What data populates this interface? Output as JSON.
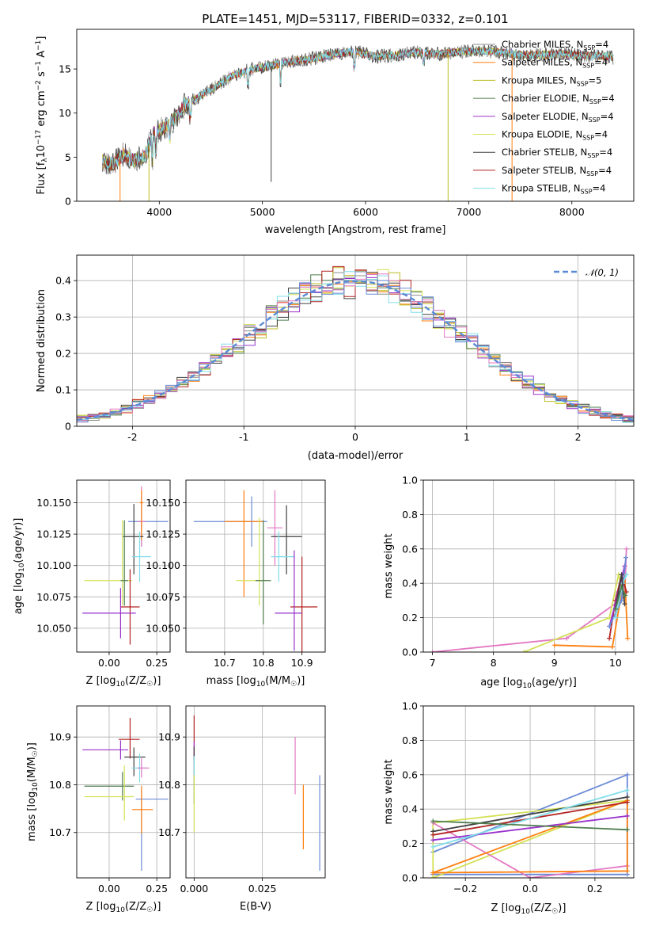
{
  "figure": {
    "title": "PLATE=1451, MJD=53117, FIBERID=0332, z=0.101"
  },
  "chart_data": [
    {
      "id": "spectrum",
      "type": "line",
      "xlabel": "wavelength [Angstrom, rest frame]",
      "ylabel_main": "Flux [f",
      "ylabel_sub": "λ",
      "ylabel_rest": "10",
      "ylabel_exp1": "−17",
      "ylabel_mid": " erg cm",
      "ylabel_exp2": "−2",
      "ylabel_s": " s",
      "ylabel_exp3": "−1",
      "ylabel_A": " A",
      "ylabel_exp4": "−1",
      "ylabel_end": "]",
      "xlim": [
        3200,
        8600
      ],
      "ylim": [
        0,
        19.5
      ],
      "xticks": [
        4000,
        5000,
        6000,
        7000,
        8000
      ],
      "yticks": [
        0,
        5,
        10,
        15
      ],
      "x": [
        3450,
        3550,
        3650,
        3750,
        3850,
        3950,
        4050,
        4150,
        4250,
        4350,
        4500,
        4700,
        4900,
        5100,
        5300,
        5500,
        5700,
        5900,
        6100,
        6300,
        6500,
        6700,
        6900,
        7100,
        7300,
        7500,
        7700,
        7900,
        8100,
        8300,
        8400
      ],
      "y": [
        4.5,
        4.2,
        5.3,
        4.6,
        5.0,
        7.8,
        8.3,
        9.3,
        11.0,
        11.6,
        12.6,
        14.2,
        15.0,
        15.4,
        15.9,
        16.2,
        16.7,
        17.0,
        16.4,
        16.6,
        16.9,
        16.7,
        16.9,
        17.1,
        16.9,
        16.6,
        16.6,
        16.7,
        16.5,
        16.5,
        16.3
      ],
      "legend": [
        {
          "pre": "Chabrier MILES, N",
          "sub": "SSP",
          "post": "=4",
          "color": "#8c8c8c"
        },
        {
          "pre": "Salpeter MILES, N",
          "sub": "SSP",
          "post": "=4",
          "color": "#ff7f0e"
        },
        {
          "pre": "Kroupa MILES, N",
          "sub": "SSP",
          "post": "=5",
          "color": "#bcbd22"
        },
        {
          "pre": "Chabrier ELODIE, N",
          "sub": "SSP",
          "post": "=4",
          "color": "#4e7d4e"
        },
        {
          "pre": "Salpeter ELODIE, N",
          "sub": "SSP",
          "post": "=4",
          "color": "#9932cc"
        },
        {
          "pre": "Kroupa ELODIE, N",
          "sub": "SSP",
          "post": "=4",
          "color": "#d4e157"
        },
        {
          "pre": "Chabrier STELIB, N",
          "sub": "SSP",
          "post": "=4",
          "color": "#404040"
        },
        {
          "pre": "Salpeter STELIB, N",
          "sub": "SSP",
          "post": "=4",
          "color": "#b22222"
        },
        {
          "pre": "Kroupa STELIB, N",
          "sub": "SSP",
          "post": "=4",
          "color": "#80deea"
        }
      ]
    },
    {
      "id": "residuals",
      "type": "line",
      "xlabel": "(data-model)/error",
      "ylabel": "Normed distribution",
      "xlim": [
        -2.5,
        2.5
      ],
      "ylim": [
        0,
        0.47
      ],
      "xticks": [
        -2,
        -1,
        0,
        1,
        2
      ],
      "yticks": [
        0.0,
        0.1,
        0.2,
        0.3,
        0.4
      ],
      "gaussian_label": "𝒩(0, 1)",
      "gaussian_color": "#5b8bd6",
      "series_colors": [
        "#8c8c8c",
        "#ff7f0e",
        "#bcbd22",
        "#4e7d4e",
        "#9932cc",
        "#d4e157",
        "#404040",
        "#b22222",
        "#80deea",
        "#e377c2",
        "#6a8ad6"
      ]
    },
    {
      "id": "age-vs-Z",
      "type": "scatter",
      "xlabel_pre": "Z [log",
      "xlabel_sub": "10",
      "xlabel_post": "(Z/Z",
      "xlabel_sun": "☉",
      "xlabel_end": ")]",
      "ylabel_pre": "age  [log",
      "ylabel_sub": "10",
      "ylabel_post": "(age/yr)]",
      "xlim": [
        -0.17,
        0.32
      ],
      "ylim": [
        10.031,
        10.168
      ],
      "xticks": [
        0.0,
        0.25
      ],
      "xticklabels": [
        "0.00",
        "0.25"
      ],
      "yticks": [
        10.05,
        10.075,
        10.1,
        10.125,
        10.15
      ],
      "yticklabels": [
        "10.050",
        "10.075",
        "10.100",
        "10.125",
        "10.150"
      ],
      "points": [
        {
          "x": 0.17,
          "y": 10.135,
          "xerr": [
            0.07,
            0.14
          ],
          "yerr": [
            0.02,
            0.02
          ],
          "color": "#6a8ad6"
        },
        {
          "x": 0.17,
          "y": 10.135,
          "xerr": [
            0.02,
            0.02
          ],
          "yerr": [
            0.02,
            0.028
          ],
          "color": "#e377c2"
        },
        {
          "x": 0.17,
          "y": 10.15,
          "xerr": [
            0.01,
            0.01
          ],
          "yerr": [
            0.03,
            0.01
          ],
          "color": "#ff7f0e"
        },
        {
          "x": 0.13,
          "y": 10.123,
          "xerr": [
            0.06,
            0.05
          ],
          "yerr": [
            0.03,
            0.026
          ],
          "color": "#404040"
        },
        {
          "x": 0.16,
          "y": 10.107,
          "xerr": [
            0.04,
            0.06
          ],
          "yerr": [
            0.02,
            0.02
          ],
          "color": "#80deea"
        },
        {
          "x": 0.07,
          "y": 10.088,
          "xerr": [
            0.2,
            0.05
          ],
          "yerr": [
            0.02,
            0.048
          ],
          "color": "#d4e157"
        },
        {
          "x": 0.08,
          "y": 10.088,
          "xerr": [
            0.02,
            0.02
          ],
          "yerr": [
            0.02,
            0.048
          ],
          "color": "#4e7d4e"
        },
        {
          "x": 0.11,
          "y": 10.067,
          "xerr": [
            0.05,
            0.05
          ],
          "yerr": [
            0.03,
            0.03
          ],
          "color": "#b22222"
        },
        {
          "x": 0.06,
          "y": 10.062,
          "xerr": [
            0.2,
            0.08
          ],
          "yerr": [
            0.02,
            0.02
          ],
          "color": "#9932cc"
        }
      ]
    },
    {
      "id": "age-vs-mass",
      "type": "scatter",
      "xlabel_pre": "mass [log",
      "xlabel_sub": "10",
      "xlabel_post": "(M/M",
      "xlabel_sun": "☉",
      "xlabel_end": ")]",
      "xlim": [
        10.6,
        10.96
      ],
      "ylim": [
        10.031,
        10.168
      ],
      "xticks": [
        10.7,
        10.8,
        10.9
      ],
      "xticklabels": [
        "10.7",
        "10.8",
        "10.9"
      ],
      "yticks": [
        10.05,
        10.075,
        10.1,
        10.125,
        10.15
      ],
      "yticklabels": [
        "10.050",
        "10.075",
        "10.100",
        "10.125",
        "10.150"
      ],
      "points": [
        {
          "x": 10.77,
          "y": 10.135,
          "xerr": [
            0.15,
            0.04
          ],
          "yerr": [
            0.02,
            0.02
          ],
          "color": "#6a8ad6"
        },
        {
          "x": 10.75,
          "y": 10.135,
          "xerr": [
            0.05,
            0.05
          ],
          "yerr": [
            0.06,
            0.025
          ],
          "color": "#ff7f0e"
        },
        {
          "x": 10.83,
          "y": 10.13,
          "xerr": [
            0.02,
            0.02
          ],
          "yerr": [
            0.03,
            0.03
          ],
          "color": "#e377c2"
        },
        {
          "x": 10.86,
          "y": 10.123,
          "xerr": [
            0.04,
            0.04
          ],
          "yerr": [
            0.03,
            0.025
          ],
          "color": "#404040"
        },
        {
          "x": 10.84,
          "y": 10.107,
          "xerr": [
            0.02,
            0.04
          ],
          "yerr": [
            0.02,
            0.02
          ],
          "color": "#80deea"
        },
        {
          "x": 10.79,
          "y": 10.088,
          "xerr": [
            0.06,
            0.02
          ],
          "yerr": [
            0.02,
            0.05
          ],
          "color": "#d4e157"
        },
        {
          "x": 10.8,
          "y": 10.088,
          "xerr": [
            0.02,
            0.02
          ],
          "yerr": [
            0.035,
            0.048
          ],
          "color": "#4e7d4e"
        },
        {
          "x": 10.9,
          "y": 10.067,
          "xerr": [
            0.03,
            0.04
          ],
          "yerr": [
            0.04,
            0.04
          ],
          "color": "#b22222"
        },
        {
          "x": 10.88,
          "y": 10.062,
          "xerr": [
            0.05,
            0.02
          ],
          "yerr": [
            0.03,
            0.05
          ],
          "color": "#9932cc"
        }
      ]
    },
    {
      "id": "weight-vs-age",
      "type": "line",
      "xlabel_pre": "age  [log",
      "xlabel_sub": "10",
      "xlabel_post": "(age/yr)]",
      "ylabel": "mass weight",
      "xlim": [
        6.85,
        10.3
      ],
      "ylim": [
        0,
        1.0
      ],
      "xticks": [
        7,
        8,
        9,
        10
      ],
      "xticklabels": [
        "7",
        "8",
        "9",
        "10"
      ],
      "yticks": [
        0.0,
        0.2,
        0.4,
        0.6,
        0.8,
        1.0
      ],
      "yticklabels": [
        "0.0",
        "0.2",
        "0.4",
        "0.6",
        "0.8",
        "1.0"
      ],
      "series": [
        {
          "color": "#e377c2",
          "x": [
            7.0,
            9.2,
            10.15,
            10.18
          ],
          "y": [
            0.0,
            0.08,
            0.32,
            0.6
          ]
        },
        {
          "color": "#d4e157",
          "x": [
            8.5,
            9.9,
            10.05,
            10.15
          ],
          "y": [
            0.0,
            0.2,
            0.45,
            0.32
          ]
        },
        {
          "color": "#ff7f0e",
          "x": [
            9.0,
            9.95,
            10.15,
            10.2
          ],
          "y": [
            0.04,
            0.03,
            0.45,
            0.08
          ]
        },
        {
          "color": "#b22222",
          "x": [
            9.9,
            10.0,
            10.1,
            10.18
          ],
          "y": [
            0.08,
            0.3,
            0.45,
            0.35
          ]
        },
        {
          "color": "#9932cc",
          "x": [
            9.9,
            10.05,
            10.15
          ],
          "y": [
            0.15,
            0.35,
            0.5
          ]
        },
        {
          "color": "#6a8ad6",
          "x": [
            9.9,
            10.1,
            10.17
          ],
          "y": [
            0.15,
            0.3,
            0.55
          ]
        },
        {
          "color": "#80deea",
          "x": [
            10.0,
            10.12,
            10.18
          ],
          "y": [
            0.2,
            0.4,
            0.45
          ]
        },
        {
          "color": "#404040",
          "x": [
            10.0,
            10.1,
            10.15
          ],
          "y": [
            0.25,
            0.45,
            0.28
          ]
        },
        {
          "color": "#4e7d4e",
          "x": [
            10.0,
            10.1,
            10.16
          ],
          "y": [
            0.25,
            0.38,
            0.33
          ]
        }
      ]
    },
    {
      "id": "mass-vs-Z",
      "type": "scatter",
      "xlabel_pre": "Z [log",
      "xlabel_sub": "10",
      "xlabel_post": "(Z/Z",
      "xlabel_sun": "☉",
      "xlabel_end": ")]",
      "ylabel_pre": "mass [log",
      "ylabel_sub": "10",
      "ylabel_post": "(M/M",
      "ylabel_sun": "☉",
      "ylabel_end": ")]",
      "xlim": [
        -0.17,
        0.32
      ],
      "ylim": [
        10.605,
        10.965
      ],
      "xticks": [
        0.0,
        0.25
      ],
      "xticklabels": [
        "0.00",
        "0.25"
      ],
      "yticks": [
        10.7,
        10.8,
        10.9
      ],
      "yticklabels": [
        "10.7",
        "10.8",
        "10.9"
      ],
      "points": [
        {
          "x": 0.11,
          "y": 10.895,
          "xerr": [
            0.06,
            0.05
          ],
          "yerr": [
            0.04,
            0.045
          ],
          "color": "#b22222"
        },
        {
          "x": 0.06,
          "y": 10.873,
          "xerr": [
            0.2,
            0.04
          ],
          "yerr": [
            0.02,
            0.02
          ],
          "color": "#9932cc"
        },
        {
          "x": 0.13,
          "y": 10.858,
          "xerr": [
            0.05,
            0.06
          ],
          "yerr": [
            0.04,
            0.02
          ],
          "color": "#404040"
        },
        {
          "x": 0.16,
          "y": 10.835,
          "xerr": [
            0.04,
            0.04
          ],
          "yerr": [
            0.03,
            0.03
          ],
          "color": "#80deea"
        },
        {
          "x": 0.17,
          "y": 10.835,
          "xerr": [
            0.02,
            0.04
          ],
          "yerr": [
            0.02,
            0.02
          ],
          "color": "#e377c2"
        },
        {
          "x": 0.07,
          "y": 10.797,
          "xerr": [
            0.2,
            0.06
          ],
          "yerr": [
            0.03,
            0.03
          ],
          "color": "#4e7d4e"
        },
        {
          "x": 0.08,
          "y": 10.775,
          "xerr": [
            0.21,
            0.05
          ],
          "yerr": [
            0.05,
            0.065
          ],
          "color": "#d4e157"
        },
        {
          "x": 0.17,
          "y": 10.77,
          "xerr": [
            0.03,
            0.14
          ],
          "yerr": [
            0.15,
            0.02
          ],
          "color": "#6a8ad6"
        },
        {
          "x": 0.17,
          "y": 10.748,
          "xerr": [
            0.05,
            0.06
          ],
          "yerr": [
            0.05,
            0.05
          ],
          "color": "#ff7f0e"
        }
      ]
    },
    {
      "id": "mass-vs-EBV",
      "type": "scatter",
      "xlabel": "E(B-V)",
      "xlim": [
        -0.003,
        0.048
      ],
      "ylim": [
        10.605,
        10.965
      ],
      "xticks": [
        0.0,
        0.025
      ],
      "xticklabels": [
        "0.000",
        "0.025"
      ],
      "yticks": [
        10.7,
        10.8,
        10.9
      ],
      "yticklabels": [
        "10.7",
        "10.8",
        "10.9"
      ],
      "points": [
        {
          "x": 0.0,
          "y": 10.9,
          "xerr": [
            0,
            0
          ],
          "yerr": [
            0.045,
            0.045
          ],
          "color": "#b22222"
        },
        {
          "x": 0.0,
          "y": 10.87,
          "xerr": [
            0,
            0
          ],
          "yerr": [
            0.02,
            0.02
          ],
          "color": "#9932cc"
        },
        {
          "x": 0.0,
          "y": 10.86,
          "xerr": [
            0,
            0
          ],
          "yerr": [
            0.04,
            0.02
          ],
          "color": "#404040"
        },
        {
          "x": 0.0,
          "y": 10.8,
          "xerr": [
            0,
            0
          ],
          "yerr": [
            0.03,
            0.06
          ],
          "color": "#80deea"
        },
        {
          "x": 0.0,
          "y": 10.79,
          "xerr": [
            0,
            0
          ],
          "yerr": [
            0.03,
            0.03
          ],
          "color": "#4e7d4e"
        },
        {
          "x": 0.0,
          "y": 10.76,
          "xerr": [
            0,
            0
          ],
          "yerr": [
            0.06,
            0.06
          ],
          "color": "#d4e157"
        },
        {
          "x": 0.037,
          "y": 10.84,
          "xerr": [
            0,
            0
          ],
          "yerr": [
            0.06,
            0.06
          ],
          "color": "#e377c2"
        },
        {
          "x": 0.04,
          "y": 10.73,
          "xerr": [
            0,
            0
          ],
          "yerr": [
            0.065,
            0.07
          ],
          "color": "#ff7f0e"
        },
        {
          "x": 0.046,
          "y": 10.72,
          "xerr": [
            0,
            0
          ],
          "yerr": [
            0.1,
            0.1
          ],
          "color": "#6a8ad6"
        }
      ]
    },
    {
      "id": "weight-vs-Z",
      "type": "line",
      "xlabel_pre": "Z [log",
      "xlabel_sub": "10",
      "xlabel_post": "(Z/Z",
      "xlabel_sun": "☉",
      "xlabel_end": ")]",
      "ylabel": "mass weight",
      "xlim": [
        -0.33,
        0.32
      ],
      "ylim": [
        0,
        1.0
      ],
      "xticks": [
        -0.2,
        0.0,
        0.2
      ],
      "xticklabels": [
        "−0.2",
        "0.0",
        "0.2"
      ],
      "yticks": [
        0.0,
        0.2,
        0.4,
        0.6,
        0.8,
        1.0
      ],
      "yticklabels": [
        "0.0",
        "0.2",
        "0.4",
        "0.6",
        "0.8",
        "1.0"
      ],
      "series": [
        {
          "color": "#6a8ad6",
          "x": [
            -0.3,
            0.3,
            0.3,
            -0.3
          ],
          "y": [
            0.15,
            0.6,
            0.02,
            0.02
          ]
        },
        {
          "color": "#d4e157",
          "x": [
            -0.3,
            0.3,
            0.3,
            -0.3,
            -0.3
          ],
          "y": [
            0.0,
            0.45,
            0.45,
            0.32,
            0.0
          ]
        },
        {
          "color": "#e377c2",
          "x": [
            -0.3,
            0.0,
            0.3
          ],
          "y": [
            0.32,
            0.0,
            0.07
          ]
        },
        {
          "color": "#ff7f0e",
          "x": [
            -0.3,
            0.3,
            0.3,
            -0.3
          ],
          "y": [
            0.03,
            0.04,
            0.45,
            0.03
          ]
        },
        {
          "color": "#9932cc",
          "x": [
            -0.3,
            0.3
          ],
          "y": [
            0.22,
            0.36
          ]
        },
        {
          "color": "#404040",
          "x": [
            -0.3,
            0.3
          ],
          "y": [
            0.27,
            0.47
          ]
        },
        {
          "color": "#b22222",
          "x": [
            -0.3,
            0.3
          ],
          "y": [
            0.25,
            0.44
          ]
        },
        {
          "color": "#80deea",
          "x": [
            -0.3,
            0.3
          ],
          "y": [
            0.18,
            0.51
          ]
        },
        {
          "color": "#4e7d4e",
          "x": [
            -0.3,
            0.3
          ],
          "y": [
            0.33,
            0.28
          ]
        }
      ]
    }
  ]
}
